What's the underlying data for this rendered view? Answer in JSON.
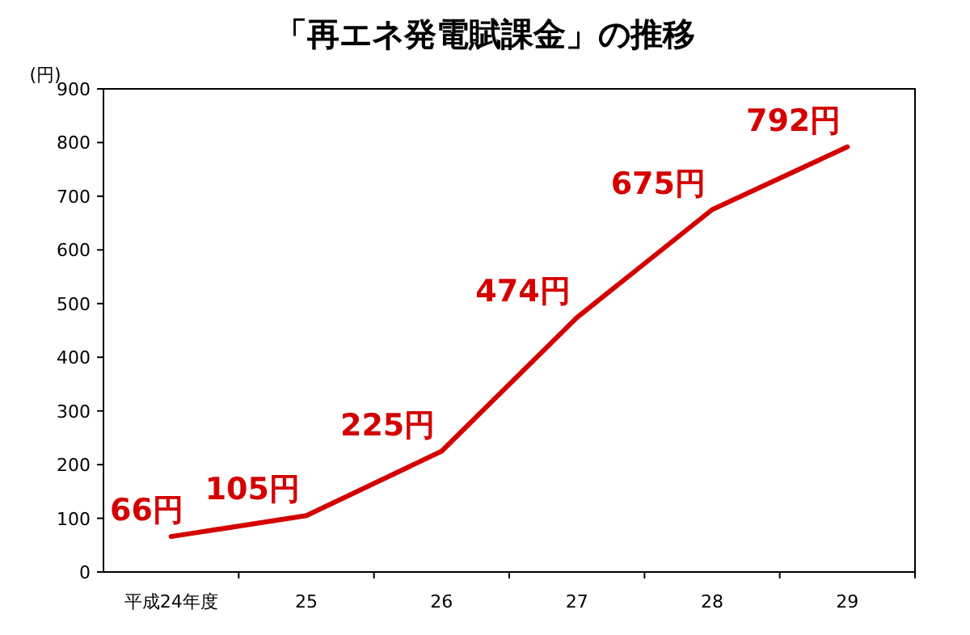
{
  "chart_data": {
    "type": "line",
    "title": "「再エネ発電賦課金」の推移",
    "ylabel": "(円)",
    "categories": [
      "平成24年度",
      "25",
      "26",
      "27",
      "28",
      "29"
    ],
    "values": [
      66,
      105,
      225,
      474,
      675,
      792
    ],
    "value_labels": [
      "66円",
      "105円",
      "225円",
      "474円",
      "675円",
      "792円"
    ],
    "color": "#d40000",
    "ylim": [
      0,
      900
    ],
    "yticks": [
      0,
      100,
      200,
      300,
      400,
      500,
      600,
      700,
      800,
      900
    ],
    "grid": false,
    "marker": "none",
    "line_style": "solid"
  }
}
